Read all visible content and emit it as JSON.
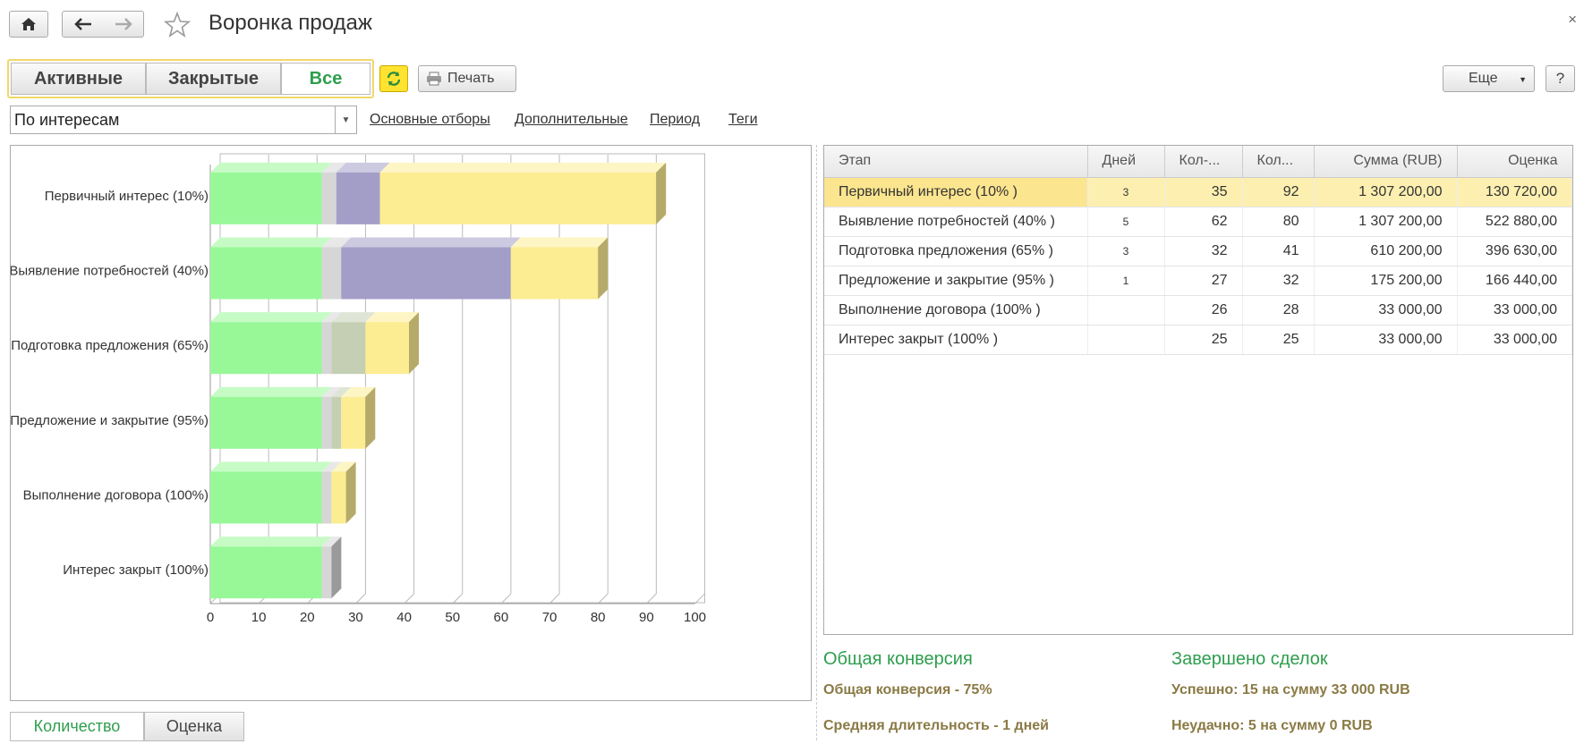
{
  "window": {
    "title": "Воронка продаж",
    "close_glyph": "×"
  },
  "toolbar": {
    "home_icon": "home-icon",
    "back_icon": "arrow-left-icon",
    "forward_icon": "arrow-right-icon",
    "favorite_icon": "star-icon",
    "filters": [
      {
        "label": "Активные",
        "active": false
      },
      {
        "label": "Закрытые",
        "active": false
      },
      {
        "label": "Все",
        "active": true
      }
    ],
    "refresh_icon": "refresh-icon",
    "print_label": "Печать",
    "more_label": "Еще",
    "help_label": "?"
  },
  "filterbar": {
    "grouping_value": "По интересам",
    "links": [
      "Основные отборы",
      "Дополнительные",
      "Период",
      "Теги"
    ]
  },
  "chart_data": {
    "type": "bar",
    "orientation": "horizontal",
    "stacked": true,
    "categories": [
      "Первичный интерес (10%)",
      "Выявление потребностей (40%)",
      "Подготовка предложения (65%)",
      "Предложение и закрытие (95%)",
      "Выполнение договора (100%)",
      "Интерес закрыт (100%)"
    ],
    "xlim": [
      0,
      100
    ],
    "xticks": [
      0,
      10,
      20,
      30,
      40,
      50,
      60,
      70,
      80,
      90,
      100
    ],
    "grid": true,
    "series": [
      {
        "color": "#98f898",
        "values": [
          23,
          23,
          23,
          23,
          23,
          23
        ]
      },
      {
        "color": "#d6d6d6",
        "values": [
          3,
          4,
          2,
          2,
          2,
          2
        ]
      },
      {
        "color": "#a39ec8",
        "values": [
          9,
          35,
          0,
          0,
          0,
          0
        ]
      },
      {
        "color": "#c5cfb4",
        "values": [
          0,
          0,
          7,
          2,
          0,
          0
        ]
      },
      {
        "color": "#fcec92",
        "values": [
          57,
          18,
          9,
          5,
          3,
          0
        ]
      }
    ]
  },
  "table": {
    "headers": [
      "Этап",
      "Дней",
      "Кол-...",
      "Кол...",
      "Сумма (RUB)",
      "Оценка"
    ],
    "rows": [
      {
        "stage": "Первичный интерес (10% )",
        "days": "3",
        "c1": "35",
        "c2": "92",
        "sum": "1 307 200,00",
        "est": "130 720,00",
        "selected": true
      },
      {
        "stage": "Выявление потребностей (40% )",
        "days": "5",
        "c1": "62",
        "c2": "80",
        "sum": "1 307 200,00",
        "est": "522 880,00",
        "selected": false
      },
      {
        "stage": "Подготовка предложения (65% )",
        "days": "3",
        "c1": "32",
        "c2": "41",
        "sum": "610 200,00",
        "est": "396 630,00",
        "selected": false
      },
      {
        "stage": "Предложение и закрытие (95% )",
        "days": "1",
        "c1": "27",
        "c2": "32",
        "sum": "175 200,00",
        "est": "166 440,00",
        "selected": false
      },
      {
        "stage": "Выполнение договора (100% )",
        "days": "",
        "c1": "26",
        "c2": "28",
        "sum": "33 000,00",
        "est": "33 000,00",
        "selected": false
      },
      {
        "stage": "Интерес закрыт (100% )",
        "days": "",
        "c1": "25",
        "c2": "25",
        "sum": "33 000,00",
        "est": "33 000,00",
        "selected": false
      }
    ]
  },
  "summary": {
    "conversion_heading": "Общая конверсия",
    "conversion_text": "Общая конверсия - 75%",
    "duration_text": "Средняя длительность - 1 дней",
    "deals_heading": "Завершено сделок",
    "success_text": "Успешно: 15 на сумму 33 000 RUB",
    "failure_text": "Неудачно: 5 на сумму 0 RUB"
  },
  "bottom_toggle": [
    {
      "label": "Количество",
      "active": true
    },
    {
      "label": "Оценка",
      "active": false
    }
  ]
}
